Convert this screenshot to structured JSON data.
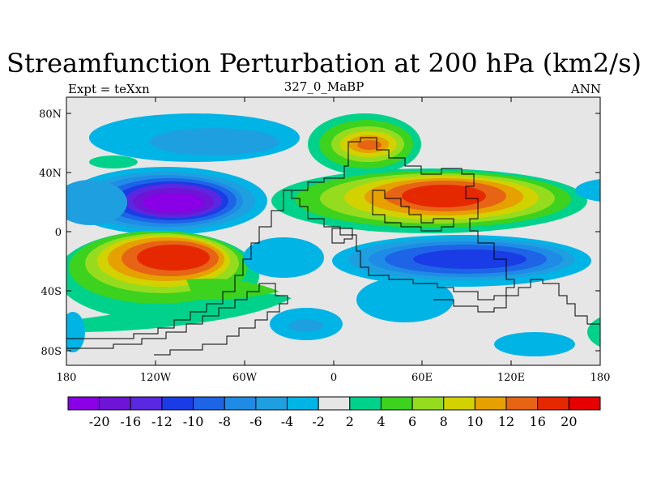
{
  "title": "Streamfunction Perturbation at 200 hPa (km2/s)",
  "left_string": "Expt = teXxn",
  "center_string": "327_0_MaBP",
  "right_string": "ANN",
  "chart_data": {
    "type": "contour_map",
    "variable": "streamfunction perturbation",
    "units": "km2/s",
    "level_hPa": 200,
    "xlim": [
      -180,
      180
    ],
    "ylim": [
      -90,
      90
    ],
    "x_ticks": [
      "180",
      "120W",
      "60W",
      "0",
      "60E",
      "120E",
      "180"
    ],
    "y_ticks": [
      "80N",
      "40N",
      "0",
      "40S",
      "80S"
    ],
    "colorbar": {
      "levels": [
        "-20",
        "-16",
        "-12",
        "-10",
        "-8",
        "-6",
        "-4",
        "-2",
        "2",
        "4",
        "6",
        "8",
        "10",
        "12",
        "16",
        "20"
      ],
      "colors": [
        "#8a00e6",
        "#6e14d6",
        "#5a28e0",
        "#1a3ce6",
        "#1e64e6",
        "#1e8ce6",
        "#1ea0e0",
        "#00b4e6",
        "#e6e6e6",
        "#00d28c",
        "#3cd21e",
        "#96dc1e",
        "#d2d200",
        "#e6a000",
        "#e66414",
        "#e62800",
        "#e60000"
      ]
    },
    "features": [
      {
        "name": "low-east-pacific-north",
        "lon": -97,
        "lat": 22,
        "value": -20
      },
      {
        "name": "high-east-pacific-south",
        "lon": -95,
        "lat": -18,
        "value": 20
      },
      {
        "name": "high-asia",
        "lon": 80,
        "lat": 22,
        "value": 16
      },
      {
        "name": "high-europe",
        "lon": 28,
        "lat": 60,
        "value": 12
      },
      {
        "name": "low-indian-ocean",
        "lon": 95,
        "lat": -20,
        "value": -10
      },
      {
        "name": "low-pacific-northeast",
        "lon": -115,
        "lat": 65,
        "value": -6
      }
    ]
  }
}
